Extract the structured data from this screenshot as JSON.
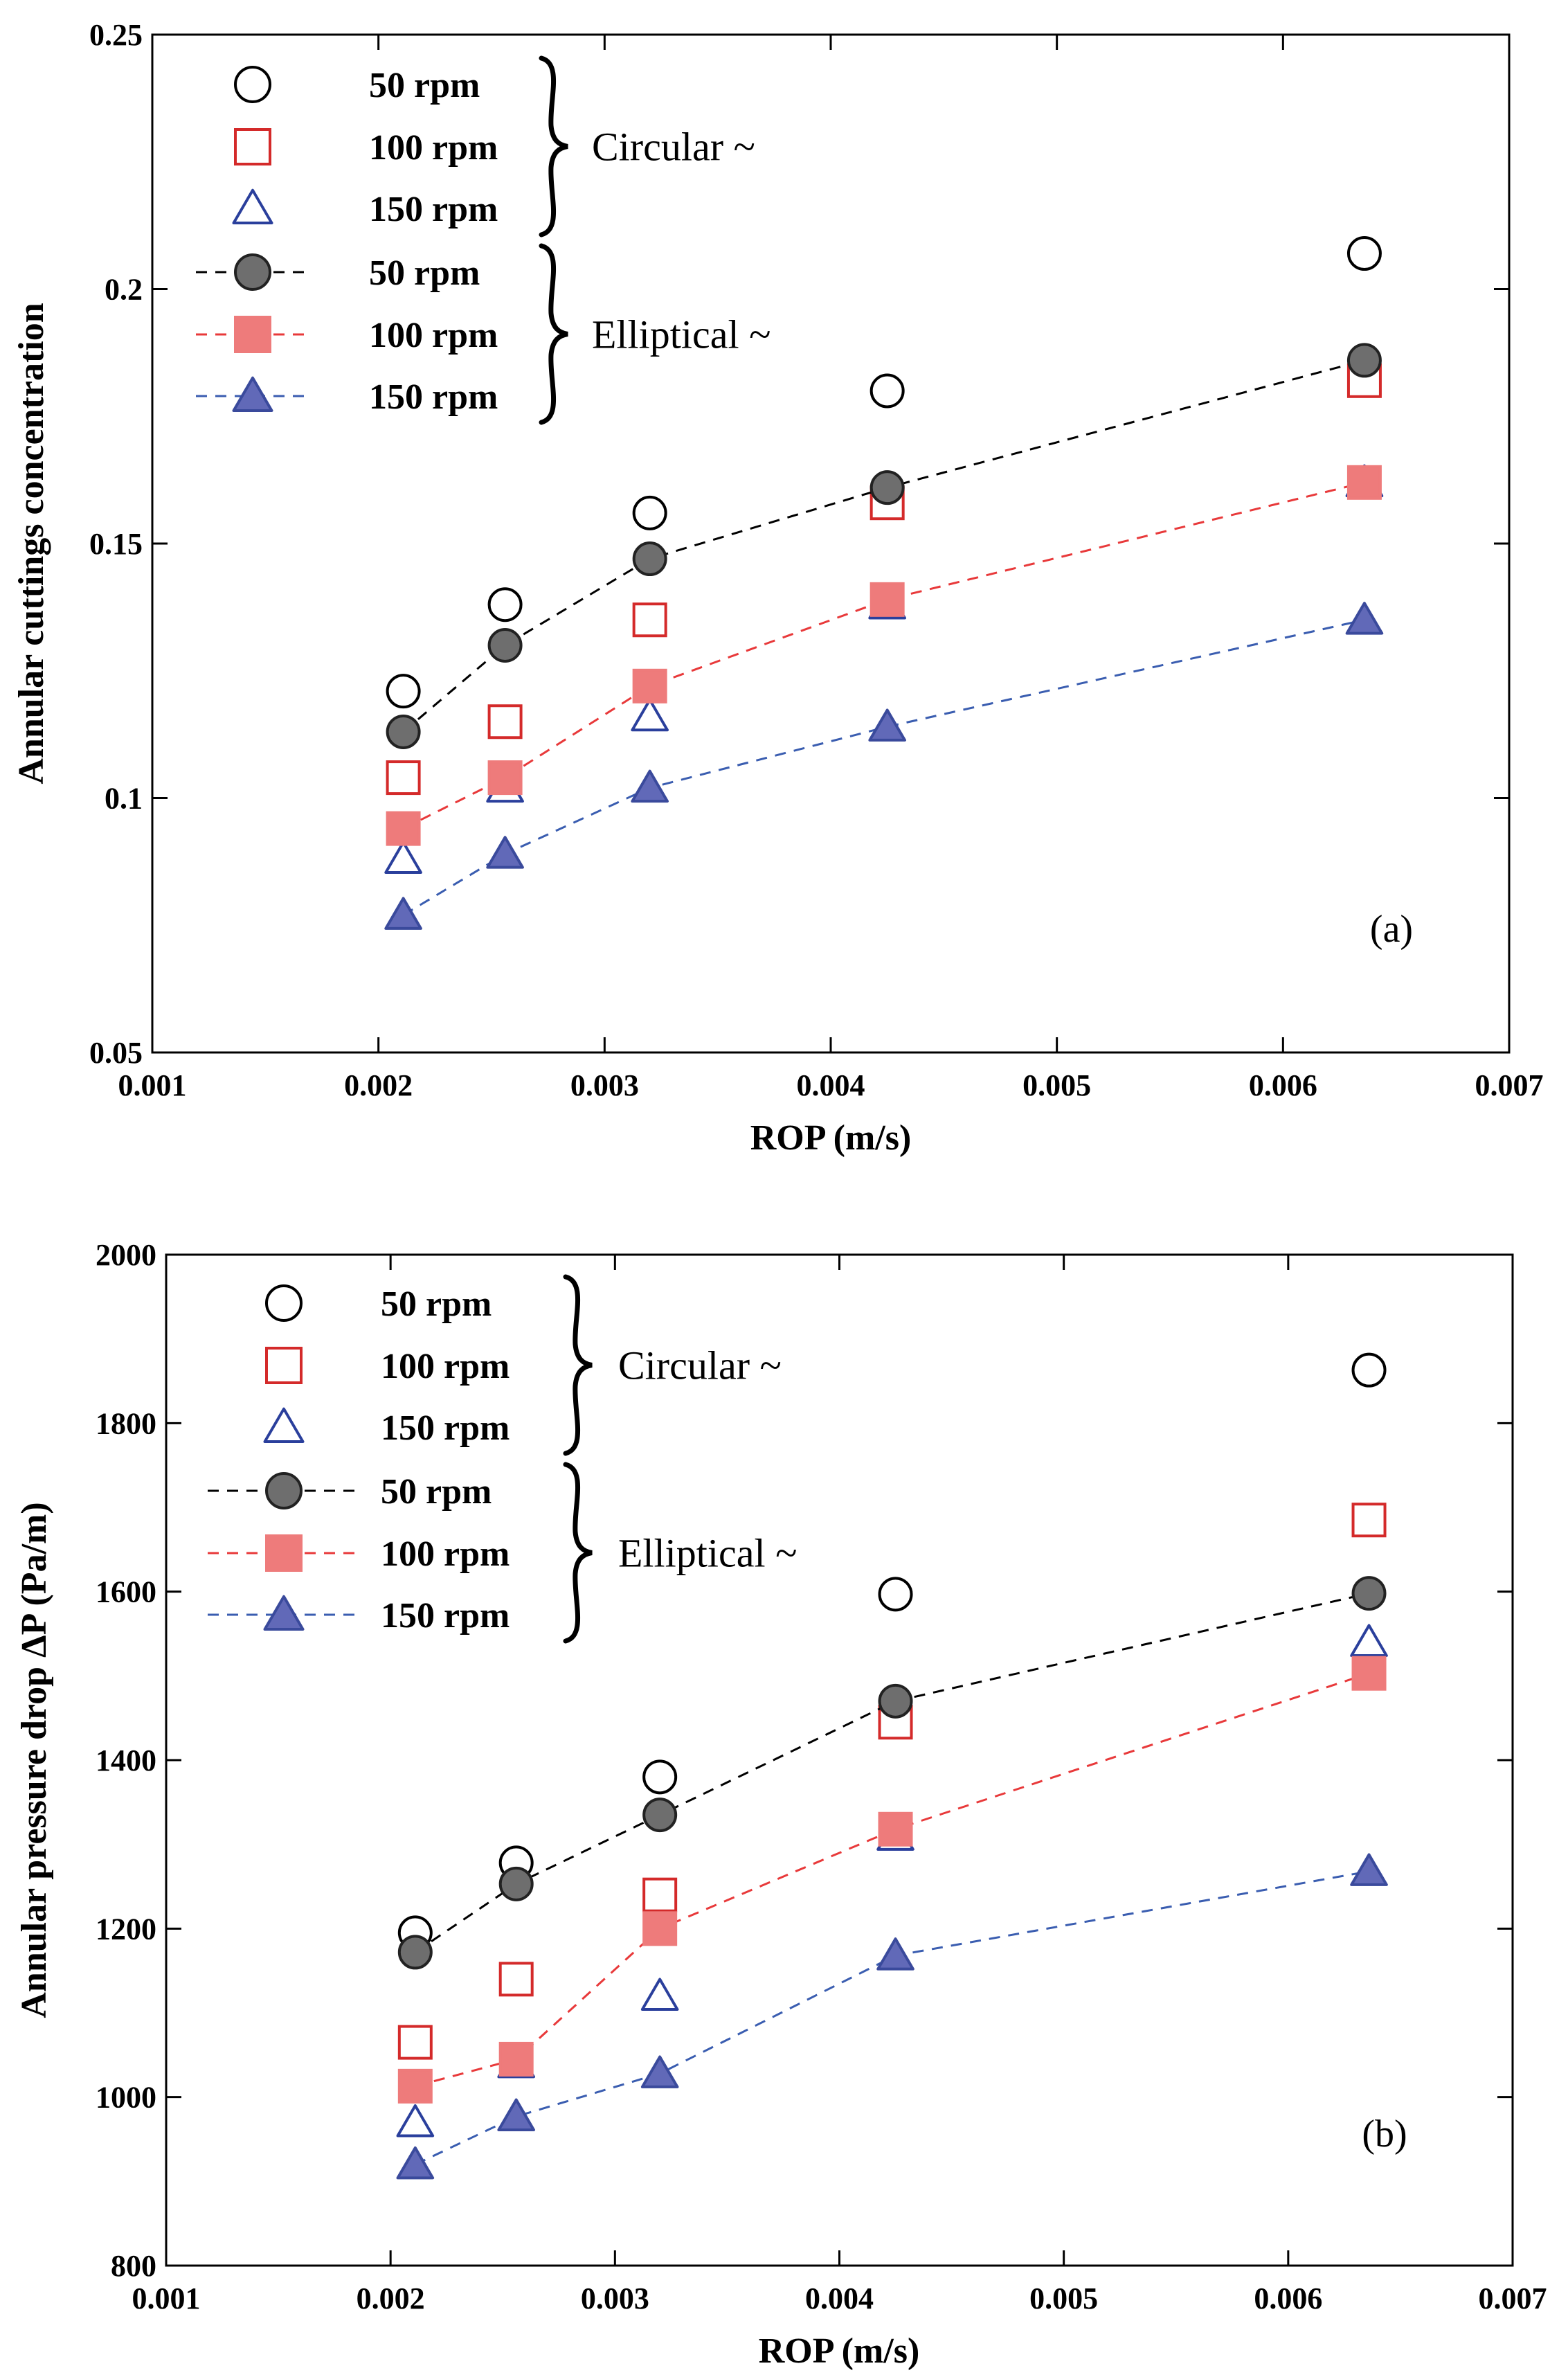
{
  "chart_data": [
    {
      "type": "scatter",
      "panel_label": "(a)",
      "xlabel": "ROP (m/s)",
      "ylabel": "Annular cuttings concentration",
      "xlim": [
        0.001,
        0.007
      ],
      "ylim": [
        0.05,
        0.25
      ],
      "xticks": [
        "0.001",
        "0.002",
        "0.003",
        "0.004",
        "0.005",
        "0.006",
        "0.007"
      ],
      "yticks": [
        "0.05",
        "0.1",
        "0.15",
        "0.2",
        "0.25"
      ],
      "x": [
        0.00211,
        0.00256,
        0.0032,
        0.00425,
        0.00636
      ],
      "legend_groups": [
        {
          "label": "Circular ~",
          "entries": [
            0,
            1,
            2
          ]
        },
        {
          "label": "Elliptical ~",
          "entries": [
            3,
            4,
            5
          ]
        }
      ],
      "series": [
        {
          "name": "50 rpm",
          "group": "circular",
          "marker": "circle",
          "filled": false,
          "line": false,
          "color": "#000000",
          "values": [
            0.121,
            0.138,
            0.156,
            0.18,
            0.207
          ]
        },
        {
          "name": "100 rpm",
          "group": "circular",
          "marker": "square",
          "filled": false,
          "line": false,
          "color": "#d42a2a",
          "values": [
            0.104,
            0.115,
            0.135,
            0.158,
            0.182
          ]
        },
        {
          "name": "150 rpm",
          "group": "circular",
          "marker": "triangle",
          "filled": false,
          "line": false,
          "color": "#2a3f9c",
          "values": [
            0.088,
            0.102,
            0.116,
            0.138,
            0.162
          ]
        },
        {
          "name": "50 rpm",
          "group": "elliptical",
          "marker": "circle",
          "filled": true,
          "line": true,
          "color": "#000000",
          "fill": "#6e6e6e",
          "values": [
            0.113,
            0.13,
            0.147,
            0.161,
            0.186
          ]
        },
        {
          "name": "100 rpm",
          "group": "elliptical",
          "marker": "square",
          "filled": true,
          "line": true,
          "color": "#e8393a",
          "fill": "#ee7b7b",
          "values": [
            0.094,
            0.104,
            0.122,
            0.139,
            0.162
          ]
        },
        {
          "name": "150 rpm",
          "group": "elliptical",
          "marker": "triangle",
          "filled": true,
          "line": true,
          "color": "#3a5db0",
          "fill": "#6169b8",
          "values": [
            0.077,
            0.089,
            0.102,
            0.114,
            0.135
          ]
        }
      ]
    },
    {
      "type": "scatter",
      "panel_label": "(b)",
      "xlabel": "ROP (m/s)",
      "ylabel": "Annular pressure drop ΔP (Pa/m)",
      "xlim": [
        0.001,
        0.007
      ],
      "ylim": [
        800,
        2000
      ],
      "xticks": [
        "0.001",
        "0.002",
        "0.003",
        "0.004",
        "0.005",
        "0.006",
        "0.007"
      ],
      "yticks": [
        "800",
        "1000",
        "1200",
        "1400",
        "1600",
        "1800",
        "2000"
      ],
      "x": [
        0.00211,
        0.00256,
        0.0032,
        0.00425,
        0.00636
      ],
      "legend_groups": [
        {
          "label": "Circular ~",
          "entries": [
            0,
            1,
            2
          ]
        },
        {
          "label": "Elliptical ~",
          "entries": [
            3,
            4,
            5
          ]
        }
      ],
      "series": [
        {
          "name": "50 rpm",
          "group": "circular",
          "marker": "circle",
          "filled": false,
          "line": false,
          "color": "#000000",
          "values": [
            1195,
            1278,
            1380,
            1597,
            1863
          ]
        },
        {
          "name": "100 rpm",
          "group": "circular",
          "marker": "square",
          "filled": false,
          "line": false,
          "color": "#d42a2a",
          "values": [
            1065,
            1140,
            1240,
            1445,
            1685
          ]
        },
        {
          "name": "150 rpm",
          "group": "circular",
          "marker": "triangle",
          "filled": false,
          "line": false,
          "color": "#2a3f9c",
          "values": [
            970,
            1040,
            1120,
            1310,
            1540
          ]
        },
        {
          "name": "50 rpm",
          "group": "elliptical",
          "marker": "circle",
          "filled": true,
          "line": true,
          "color": "#000000",
          "fill": "#6e6e6e",
          "values": [
            1172,
            1253,
            1335,
            1470,
            1598
          ]
        },
        {
          "name": "100 rpm",
          "group": "elliptical",
          "marker": "square",
          "filled": true,
          "line": true,
          "color": "#e8393a",
          "fill": "#ee7b7b",
          "values": [
            1013,
            1045,
            1200,
            1318,
            1503
          ]
        },
        {
          "name": "150 rpm",
          "group": "elliptical",
          "marker": "triangle",
          "filled": true,
          "line": true,
          "color": "#3a5db0",
          "fill": "#6169b8",
          "values": [
            920,
            977,
            1028,
            1168,
            1268
          ]
        }
      ]
    }
  ]
}
